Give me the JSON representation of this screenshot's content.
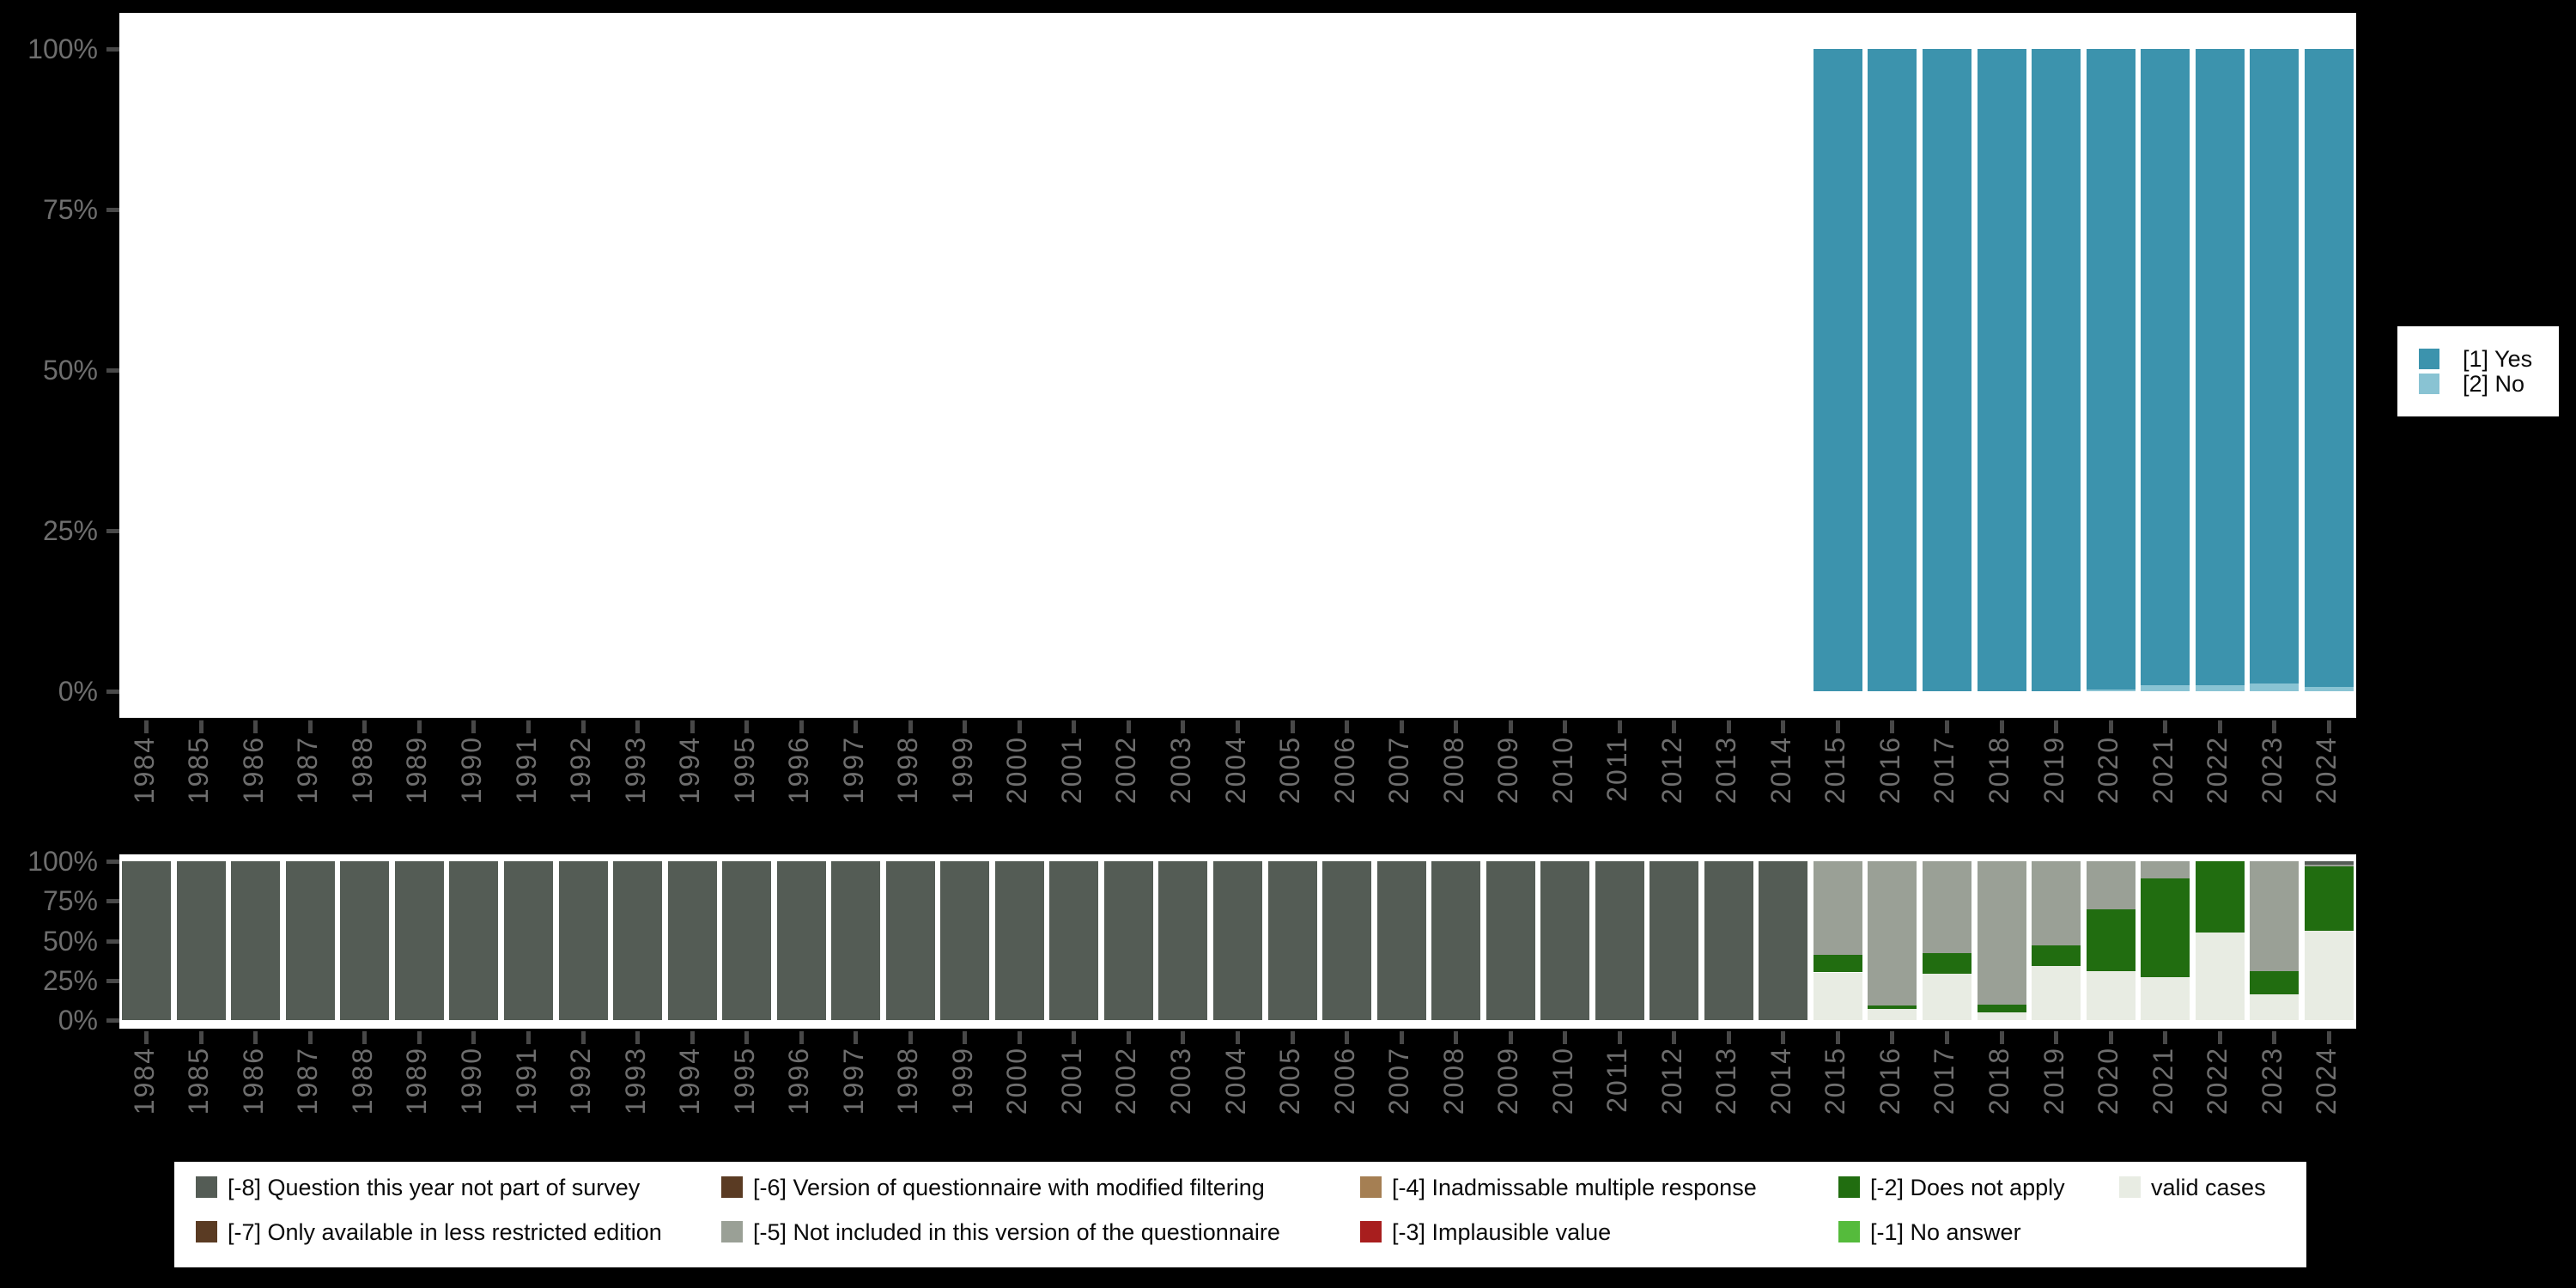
{
  "colors": {
    "background": "#000000",
    "panel": "#ffffff",
    "axis_text": "#6e6e6e",
    "tick": "#484848",
    "yes": "#3c93ad",
    "no": "#89c3d3",
    "not_part_of_survey": "#545c55",
    "less_restricted": "#5a3b23",
    "modified_filtering": "#5a3b23",
    "not_included": "#9aa096",
    "inadmissable": "#a57f53",
    "implausible": "#a81e1e",
    "does_not_apply": "#216d10",
    "no_answer": "#55bb3c",
    "valid_cases": "#e8ece3"
  },
  "top_legend": {
    "entries": [
      {
        "label": "[1] Yes",
        "color": "#3c93ad"
      },
      {
        "label": "[2] No",
        "color": "#89c3d3"
      }
    ]
  },
  "bottom_legend": {
    "entries": [
      {
        "label": "[-8] Question this year not part of survey",
        "color": "#545c55"
      },
      {
        "label": "[-7] Only available in less restricted edition",
        "color": "#5a3b23"
      },
      {
        "label": "[-6] Version of questionnaire with modified filtering",
        "color": "#5a3b23"
      },
      {
        "label": "[-5] Not included in this version of the questionnaire",
        "color": "#9aa096"
      },
      {
        "label": "[-4] Inadmissable multiple response",
        "color": "#a57f53"
      },
      {
        "label": "[-3] Implausible value",
        "color": "#a81e1e"
      },
      {
        "label": "[-2] Does not apply",
        "color": "#216d10"
      },
      {
        "label": "[-1] No answer",
        "color": "#55bb3c"
      },
      {
        "label": "valid cases",
        "color": "#e8ece3"
      }
    ]
  },
  "chart_data": [
    {
      "type": "bar",
      "stacked": true,
      "title": "",
      "xlabel": "",
      "ylabel": "",
      "ylim": [
        0,
        100
      ],
      "grid": false,
      "legend_position": "right",
      "y_ticks": [
        {
          "value": 0,
          "label": "0%"
        },
        {
          "value": 25,
          "label": "25%"
        },
        {
          "value": 50,
          "label": "50%"
        },
        {
          "value": 75,
          "label": "75%"
        },
        {
          "value": 100,
          "label": "100%"
        }
      ],
      "categories": [
        "1984",
        "1985",
        "1986",
        "1987",
        "1988",
        "1989",
        "1990",
        "1991",
        "1992",
        "1993",
        "1994",
        "1995",
        "1996",
        "1997",
        "1998",
        "1999",
        "2000",
        "2001",
        "2002",
        "2003",
        "2004",
        "2005",
        "2006",
        "2007",
        "2008",
        "2009",
        "2010",
        "2011",
        "2012",
        "2013",
        "2014",
        "2015",
        "2016",
        "2017",
        "2018",
        "2019",
        "2020",
        "2021",
        "2022",
        "2023",
        "2024"
      ],
      "series": [
        {
          "name": "[2] No",
          "color": "#89c3d3",
          "values": [
            0,
            0,
            0,
            0,
            0,
            0,
            0,
            0,
            0,
            0,
            0,
            0,
            0,
            0,
            0,
            0,
            0,
            0,
            0,
            0,
            0,
            0,
            0,
            0,
            0,
            0,
            0,
            0,
            0,
            0,
            0,
            0,
            0,
            0,
            0,
            0,
            0.3,
            1,
            1,
            1.2,
            0.7
          ]
        },
        {
          "name": "[1] Yes",
          "color": "#3c93ad",
          "values": [
            0,
            0,
            0,
            0,
            0,
            0,
            0,
            0,
            0,
            0,
            0,
            0,
            0,
            0,
            0,
            0,
            0,
            0,
            0,
            0,
            0,
            0,
            0,
            0,
            0,
            0,
            0,
            0,
            0,
            0,
            0,
            100,
            100,
            100,
            100,
            100,
            99.7,
            99,
            99,
            98.8,
            99.3
          ]
        }
      ]
    },
    {
      "type": "bar",
      "stacked": true,
      "title": "",
      "xlabel": "",
      "ylabel": "",
      "ylim": [
        0,
        100
      ],
      "grid": false,
      "legend_position": "bottom",
      "y_ticks": [
        {
          "value": 0,
          "label": "0%"
        },
        {
          "value": 25,
          "label": "25%"
        },
        {
          "value": 50,
          "label": "50%"
        },
        {
          "value": 75,
          "label": "75%"
        },
        {
          "value": 100,
          "label": "100%"
        }
      ],
      "categories": [
        "1984",
        "1985",
        "1986",
        "1987",
        "1988",
        "1989",
        "1990",
        "1991",
        "1992",
        "1993",
        "1994",
        "1995",
        "1996",
        "1997",
        "1998",
        "1999",
        "2000",
        "2001",
        "2002",
        "2003",
        "2004",
        "2005",
        "2006",
        "2007",
        "2008",
        "2009",
        "2010",
        "2011",
        "2012",
        "2013",
        "2014",
        "2015",
        "2016",
        "2017",
        "2018",
        "2019",
        "2020",
        "2021",
        "2022",
        "2023",
        "2024"
      ],
      "series": [
        {
          "name": "valid cases",
          "color": "#e8ece3",
          "values": [
            0,
            0,
            0,
            0,
            0,
            0,
            0,
            0,
            0,
            0,
            0,
            0,
            0,
            0,
            0,
            0,
            0,
            0,
            0,
            0,
            0,
            0,
            0,
            0,
            0,
            0,
            0,
            0,
            0,
            0,
            0,
            30,
            7,
            29,
            5,
            34,
            31,
            27,
            55,
            16,
            56
          ]
        },
        {
          "name": "[-2] Does not apply",
          "color": "#216d10",
          "values": [
            0,
            0,
            0,
            0,
            0,
            0,
            0,
            0,
            0,
            0,
            0,
            0,
            0,
            0,
            0,
            0,
            0,
            0,
            0,
            0,
            0,
            0,
            0,
            0,
            0,
            0,
            0,
            0,
            0,
            0,
            0,
            11,
            2,
            13,
            5,
            13,
            39,
            62,
            45,
            15,
            41
          ]
        },
        {
          "name": "[-5] Not included in this version of the questionnaire",
          "color": "#9aa096",
          "values": [
            0,
            0,
            0,
            0,
            0,
            0,
            0,
            0,
            0,
            0,
            0,
            0,
            0,
            0,
            0,
            0,
            0,
            0,
            0,
            0,
            0,
            0,
            0,
            0,
            0,
            0,
            0,
            0,
            0,
            0,
            0,
            59,
            91,
            58,
            90,
            53,
            30,
            11,
            0,
            69,
            1
          ]
        },
        {
          "name": "[-8] Question this year not part of survey",
          "color": "#545c55",
          "values": [
            100,
            100,
            100,
            100,
            100,
            100,
            100,
            100,
            100,
            100,
            100,
            100,
            100,
            100,
            100,
            100,
            100,
            100,
            100,
            100,
            100,
            100,
            100,
            100,
            100,
            100,
            100,
            100,
            100,
            100,
            100,
            0,
            0,
            0,
            0,
            0,
            0,
            0,
            0,
            0,
            2
          ]
        }
      ]
    }
  ]
}
